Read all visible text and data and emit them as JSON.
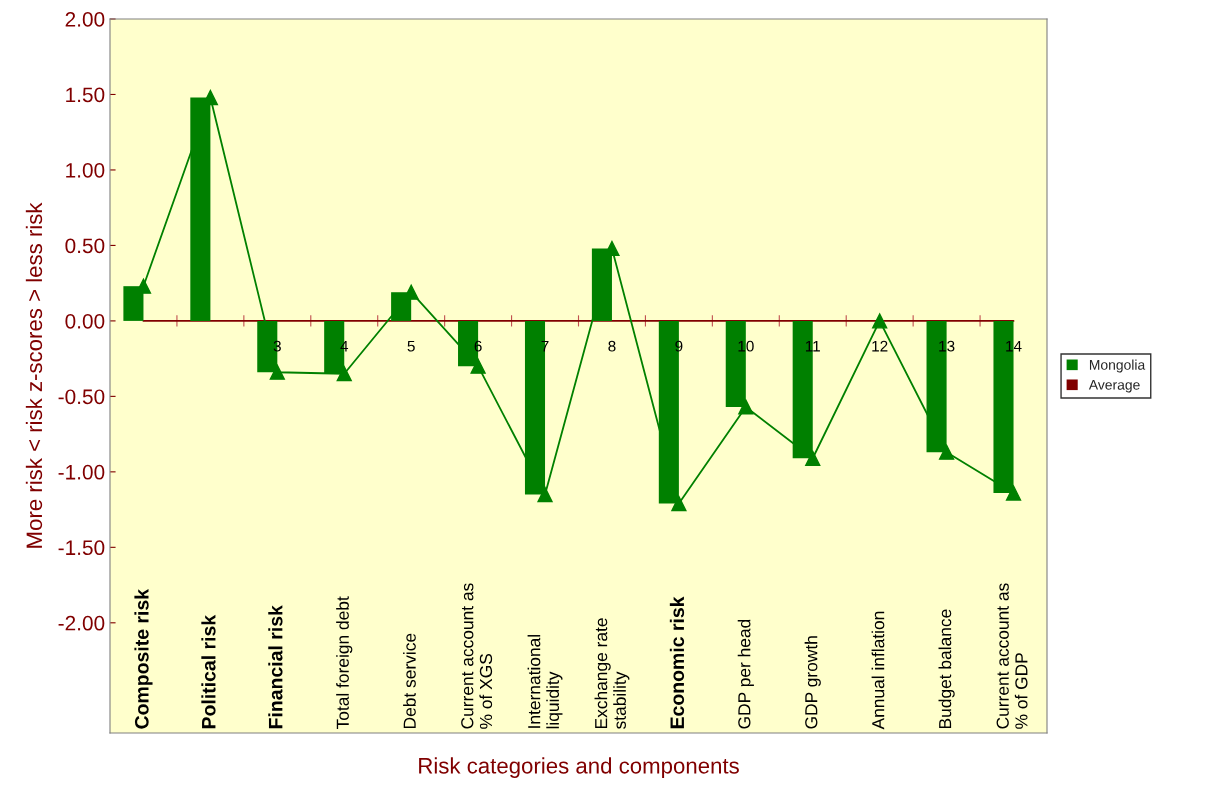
{
  "chart_data": {
    "type": "bar",
    "categories": [
      "Composite risk",
      "Political risk",
      "Financial risk",
      "Total foreign debt",
      "Debt service",
      "Current account as\n% of XGS",
      "International\nliquidity",
      "Exchange rate\nstability",
      "Economic risk",
      "GDP per head",
      "GDP growth",
      "Annual inflation",
      "Budget balance",
      "Current account as\n% of GDP"
    ],
    "series": [
      {
        "name": "Mongolia",
        "color": "#008000",
        "values": [
          0.23,
          1.48,
          -0.34,
          -0.35,
          0.19,
          -0.3,
          -1.15,
          0.48,
          -1.21,
          -0.57,
          -0.91,
          0.0,
          -0.87,
          -1.14
        ]
      },
      {
        "type": "line",
        "color": "#008000",
        "marker": "triangle",
        "values": [
          0.23,
          1.48,
          -0.34,
          -0.35,
          0.19,
          -0.3,
          -1.15,
          0.48,
          -1.21,
          -0.57,
          -0.91,
          0.0,
          -0.87,
          -1.14
        ]
      },
      {
        "name": "Average",
        "type": "line",
        "color": "#800000",
        "marker": "none",
        "values": [
          0,
          0,
          0,
          0,
          0,
          0,
          0,
          0,
          0,
          0,
          0,
          0,
          0,
          0
        ]
      }
    ],
    "xlabel": "Risk categories and components",
    "ylabel": "More risk < risk z-scores > less risk",
    "ylim": [
      -2.73,
      2.0
    ],
    "yticks": [
      {
        "value": 2,
        "label": "2.00"
      },
      {
        "value": 1.5,
        "label": "1.50"
      },
      {
        "value": 1,
        "label": "1.00"
      },
      {
        "value": 0.5,
        "label": "0.50"
      },
      {
        "value": 0,
        "label": "0.00"
      },
      {
        "value": -0.5,
        "label": "-0.50"
      },
      {
        "value": -1,
        "label": "-1.00"
      },
      {
        "value": -1.5,
        "label": "-1.50"
      },
      {
        "value": -2,
        "label": "-2.00"
      }
    ],
    "annotations": [
      {
        "text": "3",
        "x": "Financial risk",
        "y": 0
      },
      {
        "text": "4",
        "x": "Total foreign debt",
        "y": 0
      },
      {
        "text": "5",
        "x": "Debt service",
        "y": 0
      },
      {
        "text": "6",
        "x": "Current account as\n% of XGS",
        "y": 0
      },
      {
        "text": "7",
        "x": "International\nliquidity",
        "y": 0
      },
      {
        "text": "8",
        "x": "Exchange rate\nstability",
        "y": 0
      },
      {
        "text": "9",
        "x": "Economic risk",
        "y": 0
      },
      {
        "text": "10",
        "x": "GDP per head",
        "y": 0
      },
      {
        "text": "11",
        "x": "GDP growth",
        "y": 0
      },
      {
        "text": "12",
        "x": "Annual inflation",
        "y": 0
      },
      {
        "text": "13",
        "x": "Budget balance",
        "y": 0
      },
      {
        "text": "14",
        "x": "Current account as\n% of GDP",
        "y": 0
      }
    ],
    "grid": false,
    "legend": "right"
  }
}
